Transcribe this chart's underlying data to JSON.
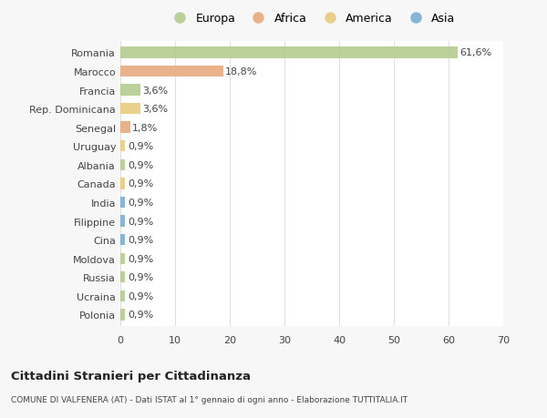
{
  "countries": [
    "Romania",
    "Marocco",
    "Francia",
    "Rep. Dominicana",
    "Senegal",
    "Uruguay",
    "Albania",
    "Canada",
    "India",
    "Filippine",
    "Cina",
    "Moldova",
    "Russia",
    "Ucraina",
    "Polonia"
  ],
  "values": [
    61.6,
    18.8,
    3.6,
    3.6,
    1.8,
    0.9,
    0.9,
    0.9,
    0.9,
    0.9,
    0.9,
    0.9,
    0.9,
    0.9,
    0.9
  ],
  "labels": [
    "61,6%",
    "18,8%",
    "3,6%",
    "3,6%",
    "1,8%",
    "0,9%",
    "0,9%",
    "0,9%",
    "0,9%",
    "0,9%",
    "0,9%",
    "0,9%",
    "0,9%",
    "0,9%",
    "0,9%"
  ],
  "continents": [
    "Europa",
    "Africa",
    "Europa",
    "America",
    "Africa",
    "America",
    "Europa",
    "America",
    "Asia",
    "Asia",
    "Asia",
    "Europa",
    "Europa",
    "Europa",
    "Europa"
  ],
  "continent_colors": {
    "Europa": "#b5cc8e",
    "Africa": "#e8aa7e",
    "America": "#e8cc7e",
    "Asia": "#7aaed4"
  },
  "legend_items": [
    "Europa",
    "Africa",
    "America",
    "Asia"
  ],
  "legend_colors": [
    "#b5cc8e",
    "#e8aa7e",
    "#e8cc7e",
    "#7aaed4"
  ],
  "xlim": [
    0,
    70
  ],
  "xticks": [
    0,
    10,
    20,
    30,
    40,
    50,
    60,
    70
  ],
  "title": "Cittadini Stranieri per Cittadinanza",
  "subtitle": "COMUNE DI VALFENERA (AT) - Dati ISTAT al 1° gennaio di ogni anno - Elaborazione TUTTITALIA.IT",
  "background_color": "#f7f7f7",
  "plot_background": "#ffffff",
  "grid_color": "#e0e0e0",
  "text_color": "#444444",
  "label_fontsize": 8.0,
  "ytick_fontsize": 8.0,
  "xtick_fontsize": 8.0,
  "bar_height": 0.6
}
